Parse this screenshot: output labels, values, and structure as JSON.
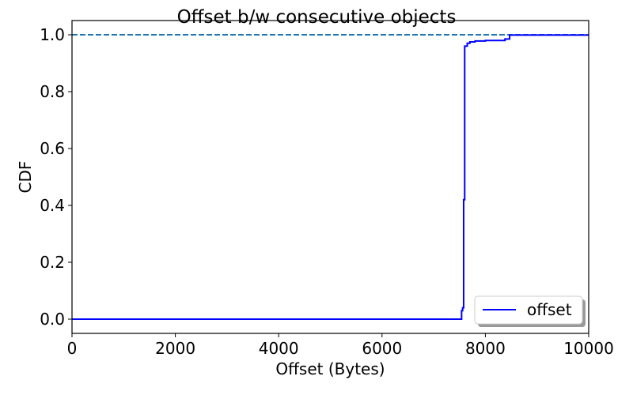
{
  "chart_data": {
    "type": "line",
    "title": "Offset b/w consecutive objects",
    "xlabel": "Offset (Bytes)",
    "ylabel": "CDF",
    "xlim": [
      0,
      10000
    ],
    "ylim": [
      -0.05,
      1.05
    ],
    "xticks": [
      0,
      2000,
      4000,
      6000,
      8000,
      10000
    ],
    "xtick_labels": [
      "0",
      "2000",
      "4000",
      "6000",
      "8000",
      "10000"
    ],
    "yticks": [
      0.0,
      0.2,
      0.4,
      0.6,
      0.8,
      1.0
    ],
    "ytick_labels": [
      "0.0",
      "0.2",
      "0.4",
      "0.6",
      "0.8",
      "1.0"
    ],
    "grid": false,
    "legend_position": "lower right",
    "series": [
      {
        "name": "offset",
        "color": "#0000ff",
        "style": "solid",
        "step": true,
        "x": [
          0,
          7540,
          7540,
          7560,
          7560,
          7580,
          7580,
          7600,
          7600,
          7650,
          7650,
          7700,
          7700,
          7800,
          7800,
          8000,
          8000,
          8380,
          8380,
          8470,
          8470,
          10000
        ],
        "y": [
          0.0,
          0.0,
          0.03,
          0.03,
          0.04,
          0.04,
          0.42,
          0.42,
          0.96,
          0.96,
          0.97,
          0.97,
          0.975,
          0.975,
          0.978,
          0.978,
          0.98,
          0.98,
          0.985,
          0.985,
          0.999,
          0.999
        ]
      }
    ],
    "reference_lines": [
      {
        "orientation": "horizontal",
        "y": 1.0,
        "color": "#1f77b4",
        "style": "dashed"
      }
    ]
  }
}
